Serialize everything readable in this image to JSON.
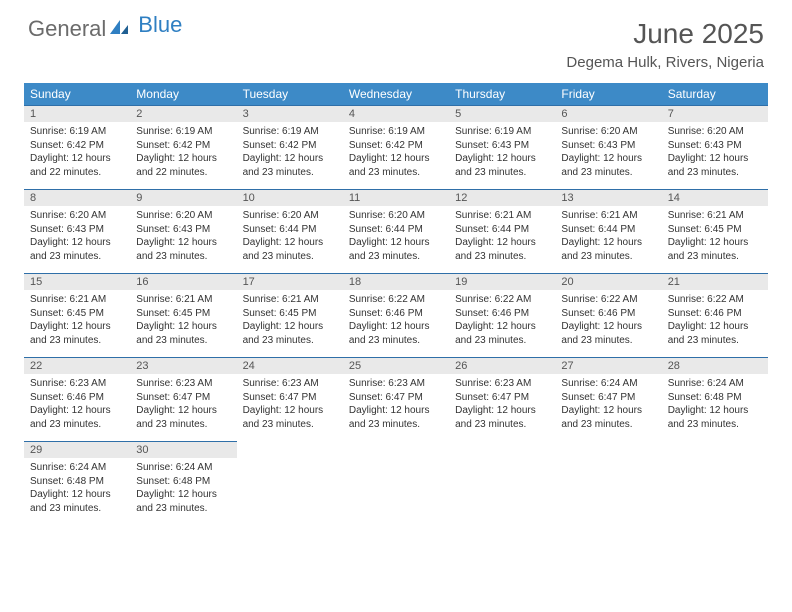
{
  "brand": {
    "part1": "General",
    "part2": "Blue"
  },
  "title": "June 2025",
  "location": "Degema Hulk, Rivers, Nigeria",
  "colors": {
    "header_bg": "#3d8ac7",
    "header_text": "#ffffff",
    "daynum_bg": "#e9e9e9",
    "border": "#2f6fa8",
    "logo_gray": "#6b6b6b",
    "logo_blue": "#2f7fc2"
  },
  "weekdays": [
    "Sunday",
    "Monday",
    "Tuesday",
    "Wednesday",
    "Thursday",
    "Friday",
    "Saturday"
  ],
  "days": [
    {
      "n": "1",
      "sr": "6:19 AM",
      "ss": "6:42 PM",
      "dl": "12 hours and 22 minutes."
    },
    {
      "n": "2",
      "sr": "6:19 AM",
      "ss": "6:42 PM",
      "dl": "12 hours and 22 minutes."
    },
    {
      "n": "3",
      "sr": "6:19 AM",
      "ss": "6:42 PM",
      "dl": "12 hours and 23 minutes."
    },
    {
      "n": "4",
      "sr": "6:19 AM",
      "ss": "6:42 PM",
      "dl": "12 hours and 23 minutes."
    },
    {
      "n": "5",
      "sr": "6:19 AM",
      "ss": "6:43 PM",
      "dl": "12 hours and 23 minutes."
    },
    {
      "n": "6",
      "sr": "6:20 AM",
      "ss": "6:43 PM",
      "dl": "12 hours and 23 minutes."
    },
    {
      "n": "7",
      "sr": "6:20 AM",
      "ss": "6:43 PM",
      "dl": "12 hours and 23 minutes."
    },
    {
      "n": "8",
      "sr": "6:20 AM",
      "ss": "6:43 PM",
      "dl": "12 hours and 23 minutes."
    },
    {
      "n": "9",
      "sr": "6:20 AM",
      "ss": "6:43 PM",
      "dl": "12 hours and 23 minutes."
    },
    {
      "n": "10",
      "sr": "6:20 AM",
      "ss": "6:44 PM",
      "dl": "12 hours and 23 minutes."
    },
    {
      "n": "11",
      "sr": "6:20 AM",
      "ss": "6:44 PM",
      "dl": "12 hours and 23 minutes."
    },
    {
      "n": "12",
      "sr": "6:21 AM",
      "ss": "6:44 PM",
      "dl": "12 hours and 23 minutes."
    },
    {
      "n": "13",
      "sr": "6:21 AM",
      "ss": "6:44 PM",
      "dl": "12 hours and 23 minutes."
    },
    {
      "n": "14",
      "sr": "6:21 AM",
      "ss": "6:45 PM",
      "dl": "12 hours and 23 minutes."
    },
    {
      "n": "15",
      "sr": "6:21 AM",
      "ss": "6:45 PM",
      "dl": "12 hours and 23 minutes."
    },
    {
      "n": "16",
      "sr": "6:21 AM",
      "ss": "6:45 PM",
      "dl": "12 hours and 23 minutes."
    },
    {
      "n": "17",
      "sr": "6:21 AM",
      "ss": "6:45 PM",
      "dl": "12 hours and 23 minutes."
    },
    {
      "n": "18",
      "sr": "6:22 AM",
      "ss": "6:46 PM",
      "dl": "12 hours and 23 minutes."
    },
    {
      "n": "19",
      "sr": "6:22 AM",
      "ss": "6:46 PM",
      "dl": "12 hours and 23 minutes."
    },
    {
      "n": "20",
      "sr": "6:22 AM",
      "ss": "6:46 PM",
      "dl": "12 hours and 23 minutes."
    },
    {
      "n": "21",
      "sr": "6:22 AM",
      "ss": "6:46 PM",
      "dl": "12 hours and 23 minutes."
    },
    {
      "n": "22",
      "sr": "6:23 AM",
      "ss": "6:46 PM",
      "dl": "12 hours and 23 minutes."
    },
    {
      "n": "23",
      "sr": "6:23 AM",
      "ss": "6:47 PM",
      "dl": "12 hours and 23 minutes."
    },
    {
      "n": "24",
      "sr": "6:23 AM",
      "ss": "6:47 PM",
      "dl": "12 hours and 23 minutes."
    },
    {
      "n": "25",
      "sr": "6:23 AM",
      "ss": "6:47 PM",
      "dl": "12 hours and 23 minutes."
    },
    {
      "n": "26",
      "sr": "6:23 AM",
      "ss": "6:47 PM",
      "dl": "12 hours and 23 minutes."
    },
    {
      "n": "27",
      "sr": "6:24 AM",
      "ss": "6:47 PM",
      "dl": "12 hours and 23 minutes."
    },
    {
      "n": "28",
      "sr": "6:24 AM",
      "ss": "6:48 PM",
      "dl": "12 hours and 23 minutes."
    },
    {
      "n": "29",
      "sr": "6:24 AM",
      "ss": "6:48 PM",
      "dl": "12 hours and 23 minutes."
    },
    {
      "n": "30",
      "sr": "6:24 AM",
      "ss": "6:48 PM",
      "dl": "12 hours and 23 minutes."
    }
  ],
  "labels": {
    "sunrise": "Sunrise:",
    "sunset": "Sunset:",
    "daylight": "Daylight:"
  }
}
